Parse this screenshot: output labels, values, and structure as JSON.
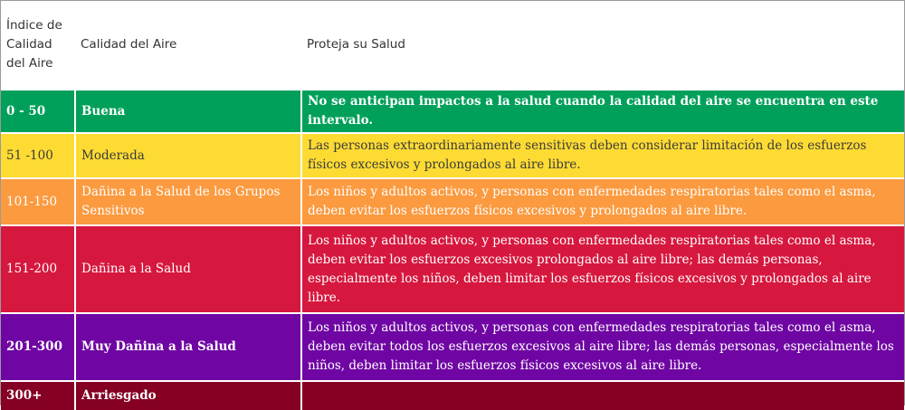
{
  "headers": {
    "index": "Índice de Calidad del Aire",
    "quality": "Calidad del Aire",
    "health": "Proteja su Salud"
  },
  "rows": [
    {
      "range": "0 - 50",
      "level": "Buena",
      "health": "No se anticipan impactos a la salud cuando la calidad del aire se encuentra en este intervalo.",
      "color": "#00a05a",
      "text_color": "#ffffff"
    },
    {
      "range": "51 -100",
      "level": "Moderada",
      "health": "Las personas extraordinariamente sensitivas deben considerar limitación de los esfuerzos físicos excesivos y prolongados al aire libre.",
      "color": "#fddb33",
      "text_color": "#3b3b3b"
    },
    {
      "range": "101-150",
      "level": "Dañina a la Salud de los Grupos Sensitivos",
      "health": "Los niños y adultos activos, y personas con enfermedades respiratorias tales como el asma, deben evitar los esfuerzos físicos excesivos y prolongados al aire libre.",
      "color": "#fb9a3f",
      "text_color": "#ffffff"
    },
    {
      "range": "151-200",
      "level": "Dañina a la Salud",
      "health": "Los niños y adultos activos, y personas con enfermedades respiratorias tales como el asma, deben evitar los esfuerzos excesivos prolongados al aire libre; las demás personas, especialmente los niños, deben limitar los esfuerzos físicos excesivos y prolongados al aire libre.",
      "color": "#d6173e",
      "text_color": "#ffffff"
    },
    {
      "range": "201-300",
      "level": "Muy Dañina a la Salud",
      "health": "Los niños y adultos activos, y personas con enfermedades respiratorias tales como el asma, deben evitar todos los esfuerzos excesivos al aire libre; las demás personas, especialmente los niños, deben limitar los esfuerzos físicos excesivos al aire libre.",
      "color": "#6f05a3",
      "text_color": "#ffffff"
    },
    {
      "range": "300+",
      "level": "Arriesgado",
      "health": "",
      "color": "#850023",
      "text_color": "#ffffff"
    }
  ]
}
